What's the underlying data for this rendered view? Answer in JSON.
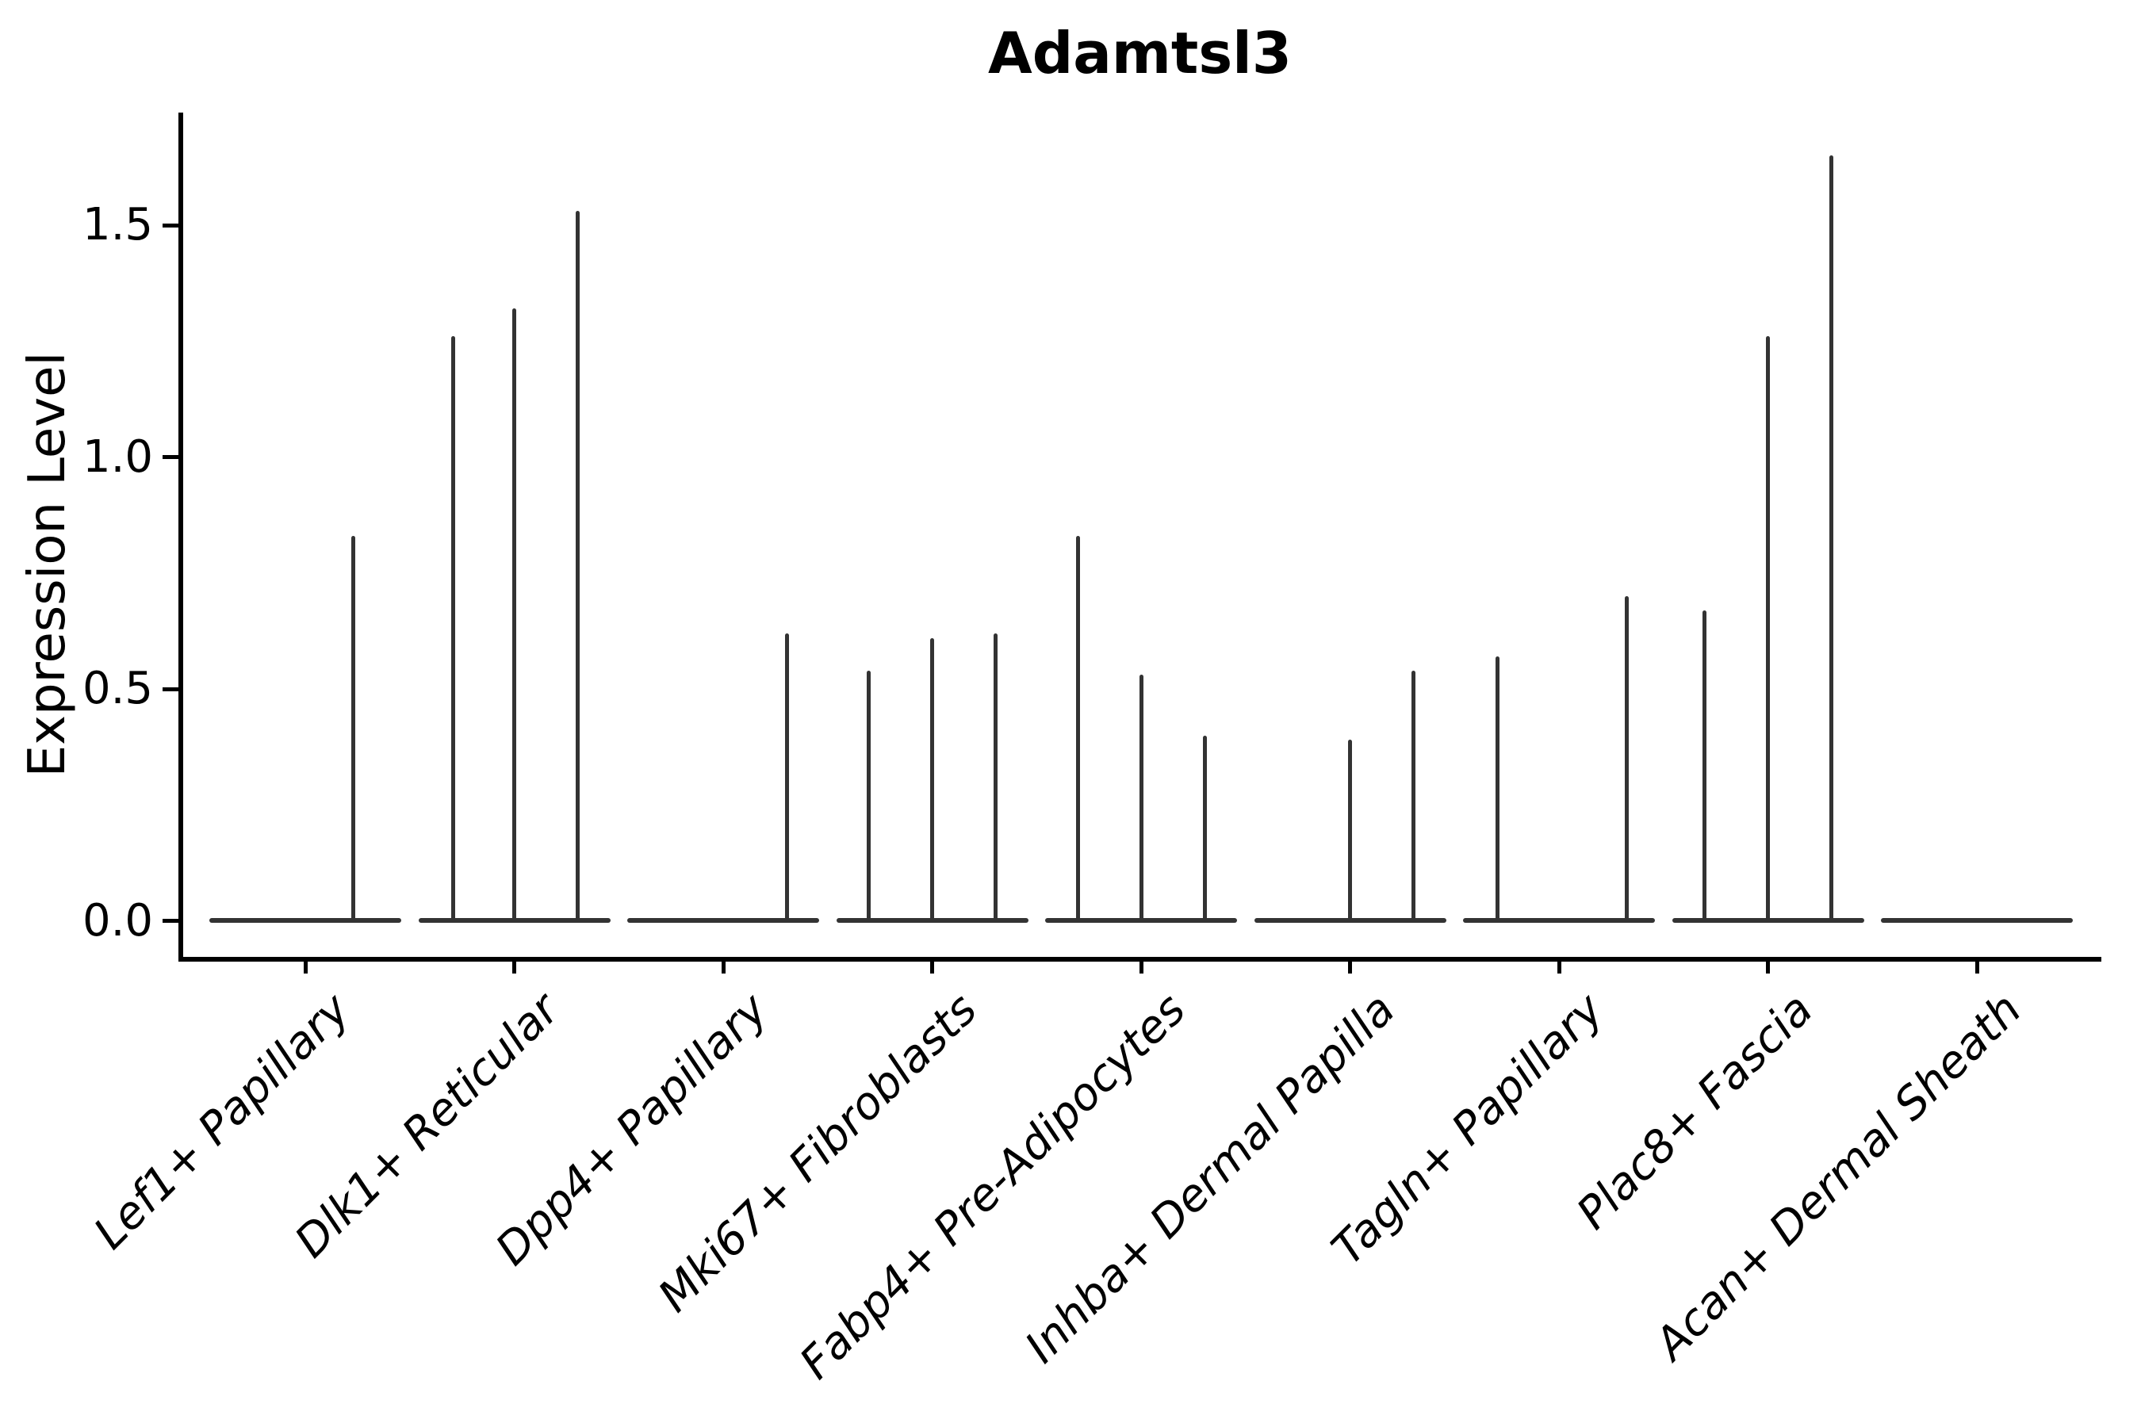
{
  "chart_data": {
    "type": "violin",
    "title": "Adamtsl3",
    "ylabel": "Expression Level",
    "xlabel": "",
    "ytick_labels": [
      "0.0",
      "0.5",
      "1.0",
      "1.5"
    ],
    "ytick_values": [
      0.0,
      0.5,
      1.0,
      1.5
    ],
    "ylim": [
      -0.08,
      1.74
    ],
    "grid": false,
    "legend": "none",
    "x_label_rotation_deg": 45,
    "categories": [
      "Lef1+ Papillary",
      "Dlk1+ Reticular",
      "Dpp4+ Papillary",
      "Mki67+ Fibroblasts",
      "Fabp4+ Pre-Adipocytes",
      "Inhba+ Dermal Papilla",
      "Tagln+ Papillary",
      "Plac8+ Fascia",
      "Acan+ Dermal Sheath"
    ],
    "violins": [
      {
        "category": "Lef1+ Papillary",
        "baseline_value": 0.0,
        "spikes": [
          {
            "offset": 60,
            "max": 0.83
          }
        ]
      },
      {
        "category": "Dlk1+ Reticular",
        "baseline_value": 0.0,
        "spikes": [
          {
            "offset": -77,
            "max": 1.26
          },
          {
            "offset": 0,
            "max": 1.32
          },
          {
            "offset": 80,
            "max": 1.53
          }
        ]
      },
      {
        "category": "Dpp4+ Papillary",
        "baseline_value": 0.0,
        "spikes": [
          {
            "offset": 80,
            "max": 0.62
          }
        ]
      },
      {
        "category": "Mki67+ Fibroblasts",
        "baseline_value": 0.0,
        "spikes": [
          {
            "offset": -80,
            "max": 0.54
          },
          {
            "offset": 0,
            "max": 0.61
          },
          {
            "offset": 80,
            "max": 0.62
          }
        ]
      },
      {
        "category": "Fabp4+ Pre-Adipocytes",
        "baseline_value": 0.0,
        "spikes": [
          {
            "offset": -80,
            "max": 0.83
          },
          {
            "offset": 0,
            "max": 0.53
          },
          {
            "offset": 80,
            "max": 0.4
          }
        ]
      },
      {
        "category": "Inhba+ Dermal Papilla",
        "baseline_value": 0.0,
        "spikes": [
          {
            "offset": 0,
            "max": 0.39
          },
          {
            "offset": 80,
            "max": 0.54
          }
        ]
      },
      {
        "category": "Tagln+ Papillary",
        "baseline_value": 0.0,
        "spikes": [
          {
            "offset": -78,
            "max": 0.57
          },
          {
            "offset": 85,
            "max": 0.7
          }
        ]
      },
      {
        "category": "Plac8+ Fascia",
        "baseline_value": 0.0,
        "spikes": [
          {
            "offset": -80,
            "max": 0.67
          },
          {
            "offset": 0,
            "max": 1.26
          },
          {
            "offset": 80,
            "max": 1.65
          }
        ]
      },
      {
        "category": "Acan+ Dermal Sheath",
        "baseline_value": 0.0,
        "spikes": []
      }
    ],
    "colors": {
      "violin": "#333333",
      "axis": "#000000",
      "text": "#000000",
      "background": "#ffffff"
    }
  }
}
